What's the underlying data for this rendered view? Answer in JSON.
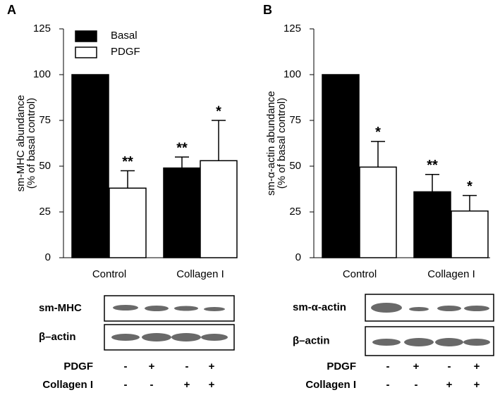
{
  "chart_data": [
    {
      "type": "bar",
      "panel": "A",
      "ylabel": [
        "sm-MHC abundance",
        "(% of basal control)"
      ],
      "categories": [
        "Control",
        "Collagen I"
      ],
      "series": [
        {
          "name": "Basal",
          "color": "#000000",
          "values": [
            100,
            49
          ],
          "errors": [
            null,
            6
          ],
          "annotations": [
            null,
            "**"
          ]
        },
        {
          "name": "PDGF",
          "color": "#ffffff",
          "values": [
            38,
            53
          ],
          "errors": [
            9.5,
            22
          ],
          "annotations": [
            "**",
            "*"
          ]
        }
      ],
      "ylim": [
        0,
        125
      ],
      "yticks": [
        0,
        25,
        50,
        75,
        100,
        125
      ],
      "legend": "upper left"
    },
    {
      "type": "bar",
      "panel": "B",
      "ylabel": [
        "sm-α-actin abundance",
        "(% of basal control)"
      ],
      "categories": [
        "Control",
        "Collagen I"
      ],
      "series": [
        {
          "name": "Basal",
          "color": "#000000",
          "values": [
            100,
            36
          ],
          "errors": [
            null,
            9.5
          ],
          "annotations": [
            null,
            "**"
          ]
        },
        {
          "name": "PDGF",
          "color": "#ffffff",
          "values": [
            49.5,
            25.5
          ],
          "errors": [
            14,
            8.5
          ],
          "annotations": [
            "*",
            "*"
          ]
        }
      ],
      "ylim": [
        0,
        125
      ],
      "yticks": [
        0,
        25,
        50,
        75,
        100,
        125
      ],
      "legend": null
    }
  ],
  "blots": [
    {
      "rows": [
        "sm-MHC",
        "β–actin"
      ],
      "treatments": [
        {
          "name": "PDGF",
          "signs": [
            "-",
            "+",
            "-",
            "+"
          ]
        },
        {
          "name": "Collagen I",
          "signs": [
            "-",
            "-",
            "+",
            "+"
          ]
        }
      ]
    },
    {
      "rows": [
        "sm-α-actin",
        "β–actin"
      ],
      "treatments": [
        {
          "name": "PDGF",
          "signs": [
            "-",
            "+",
            "-",
            "+"
          ]
        },
        {
          "name": "Collagen I",
          "signs": [
            "-",
            "-",
            "+",
            "+"
          ]
        }
      ]
    }
  ]
}
